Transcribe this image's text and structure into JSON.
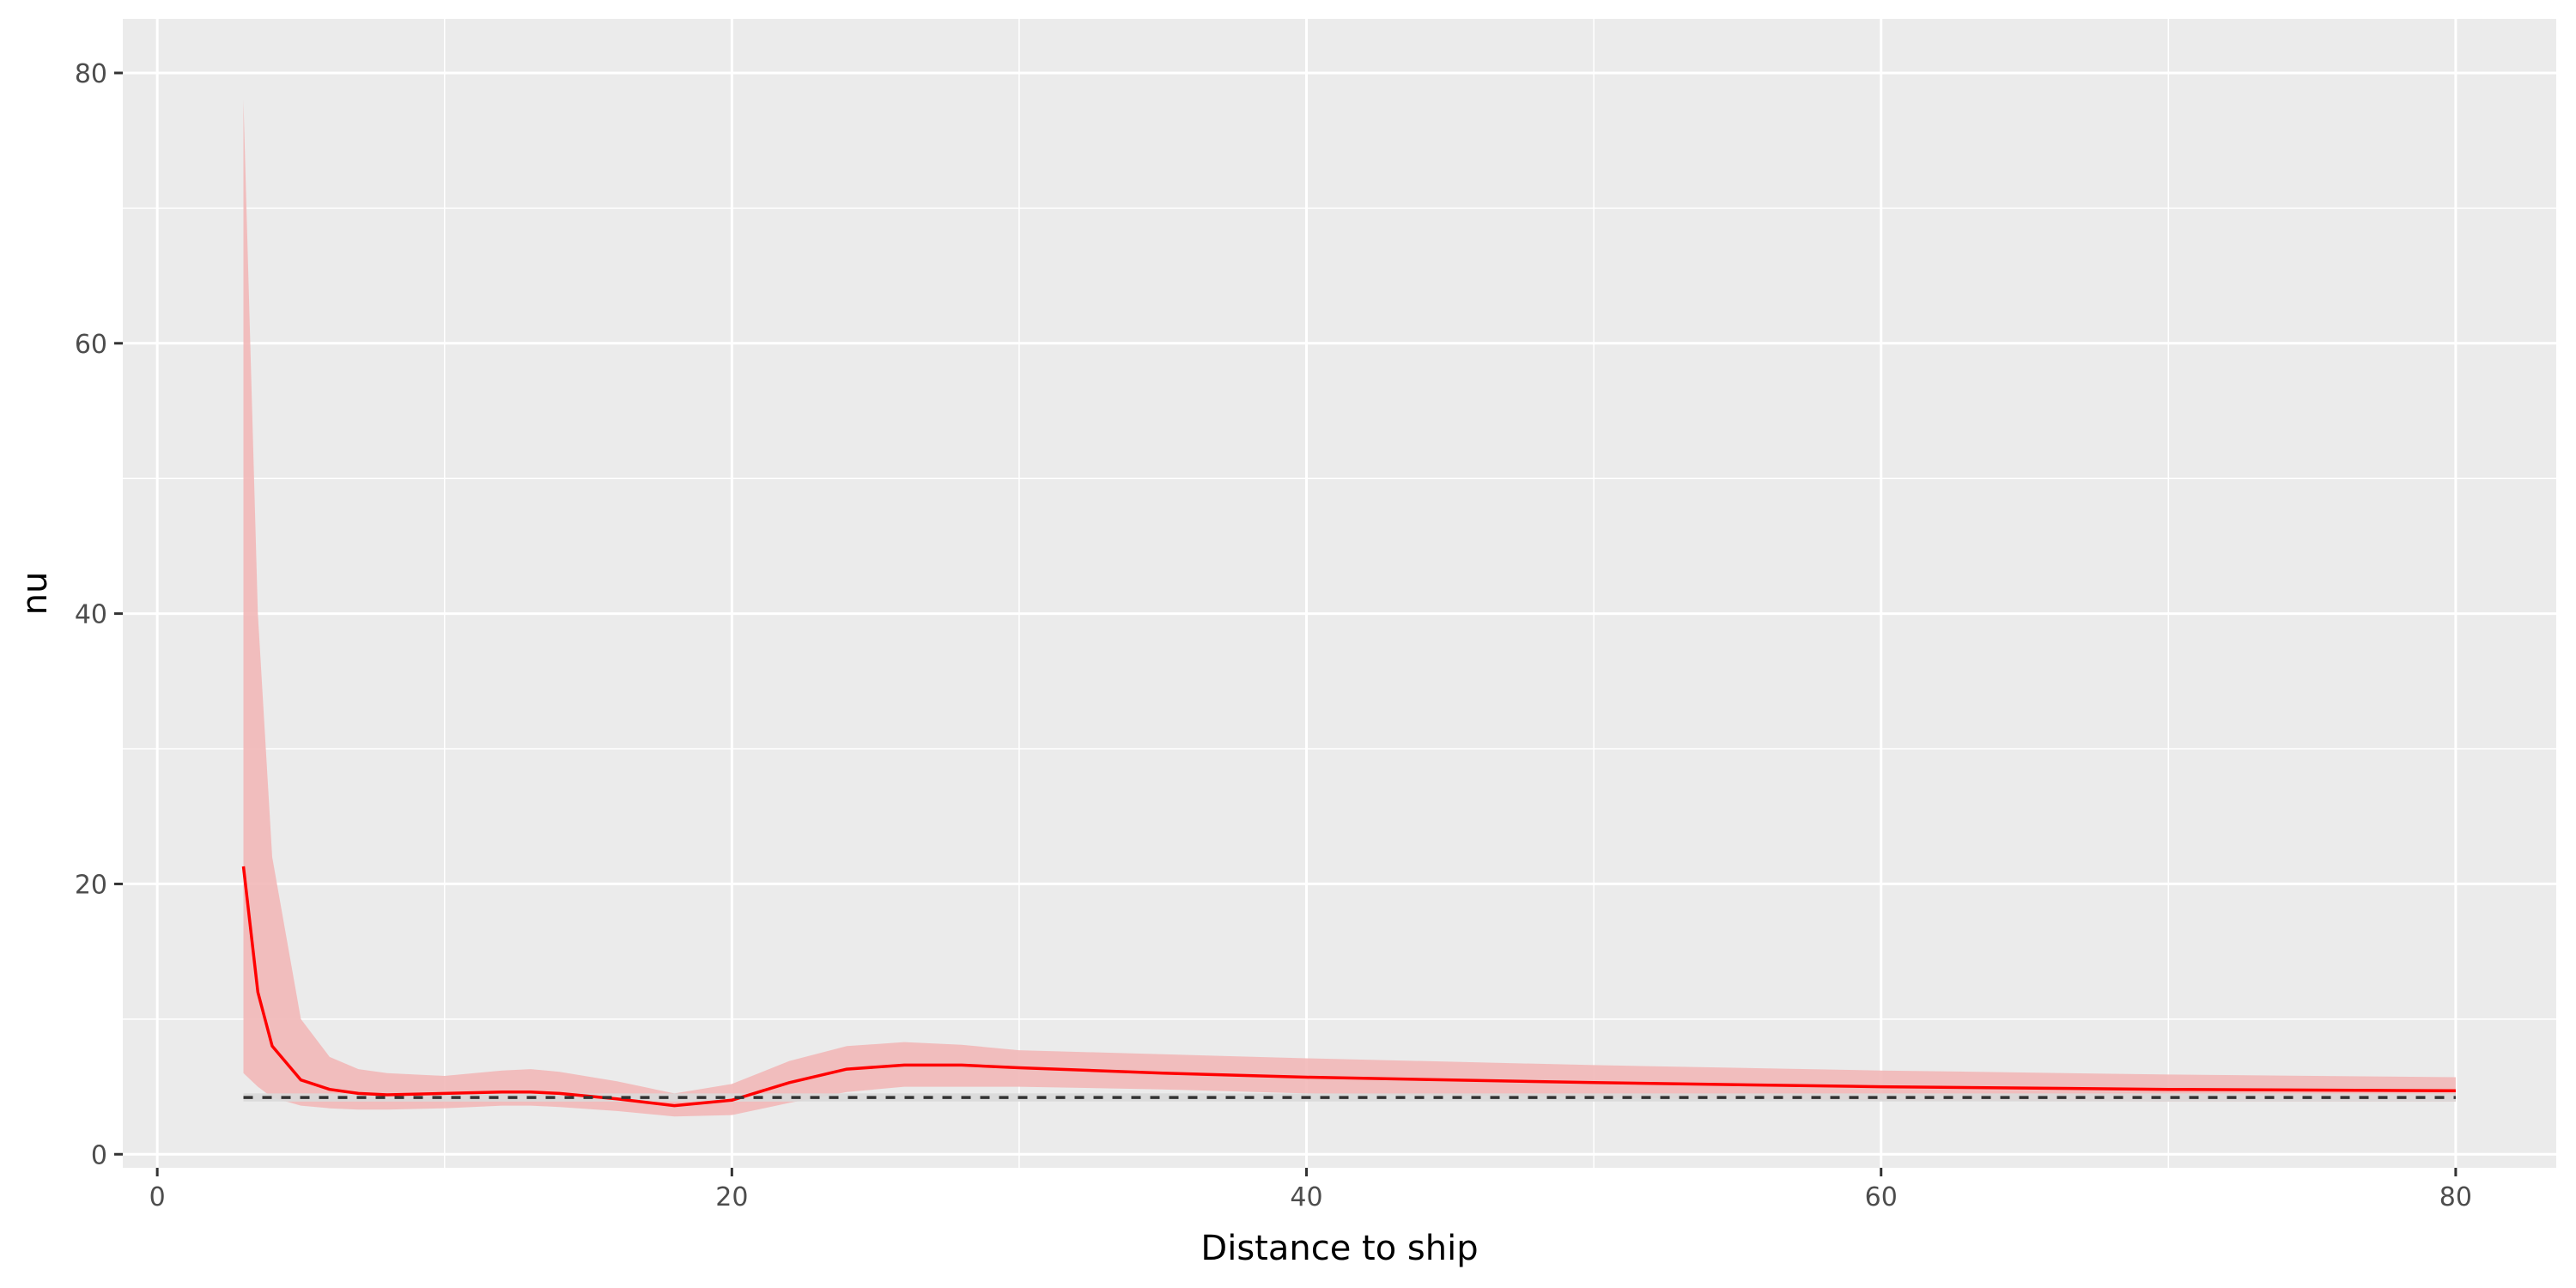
{
  "chart_data": {
    "type": "line",
    "title": "",
    "xlabel": "Distance to ship",
    "ylabel": "nu",
    "xlim": [
      -1.2,
      83.5
    ],
    "ylim": [
      -1.0,
      84.0
    ],
    "x_ticks": [
      0,
      20,
      40,
      60,
      80
    ],
    "y_ticks": [
      0,
      20,
      40,
      60,
      80
    ],
    "grid": true,
    "legend": "none",
    "series": [
      {
        "style": "solid",
        "color": "#ff0000",
        "x": [
          3,
          3.5,
          4,
          5,
          6,
          7,
          8,
          10,
          12,
          13,
          14,
          16,
          18,
          20,
          22,
          24,
          26,
          28,
          30,
          35,
          40,
          50,
          60,
          70,
          80
        ],
        "y": [
          21.3,
          12.0,
          8.0,
          5.5,
          4.8,
          4.5,
          4.4,
          4.5,
          4.6,
          4.6,
          4.5,
          4.1,
          3.6,
          4.0,
          5.3,
          6.3,
          6.6,
          6.6,
          6.4,
          6.0,
          5.7,
          5.3,
          5.0,
          4.8,
          4.7
        ],
        "ribbon": {
          "color": "#f2b8b8",
          "lower": [
            6.0,
            5.0,
            4.2,
            3.6,
            3.4,
            3.3,
            3.3,
            3.4,
            3.6,
            3.6,
            3.5,
            3.2,
            2.8,
            2.9,
            3.8,
            4.6,
            5.0,
            5.0,
            5.0,
            4.8,
            4.5,
            4.2,
            4.0,
            3.9,
            3.9
          ],
          "upper": [
            78.0,
            40.0,
            22.0,
            10.0,
            7.2,
            6.3,
            6.0,
            5.8,
            6.2,
            6.3,
            6.1,
            5.4,
            4.5,
            5.2,
            6.9,
            8.0,
            8.3,
            8.1,
            7.7,
            7.4,
            7.1,
            6.6,
            6.2,
            5.9,
            5.7
          ]
        }
      },
      {
        "style": "dashed",
        "color": "#333333",
        "x": [
          3,
          80
        ],
        "y": [
          4.2,
          4.2
        ],
        "ribbon": {
          "color": "#d9d9d9",
          "lower": [
            3.9,
            3.9
          ],
          "upper": [
            4.5,
            4.5
          ]
        }
      }
    ]
  }
}
